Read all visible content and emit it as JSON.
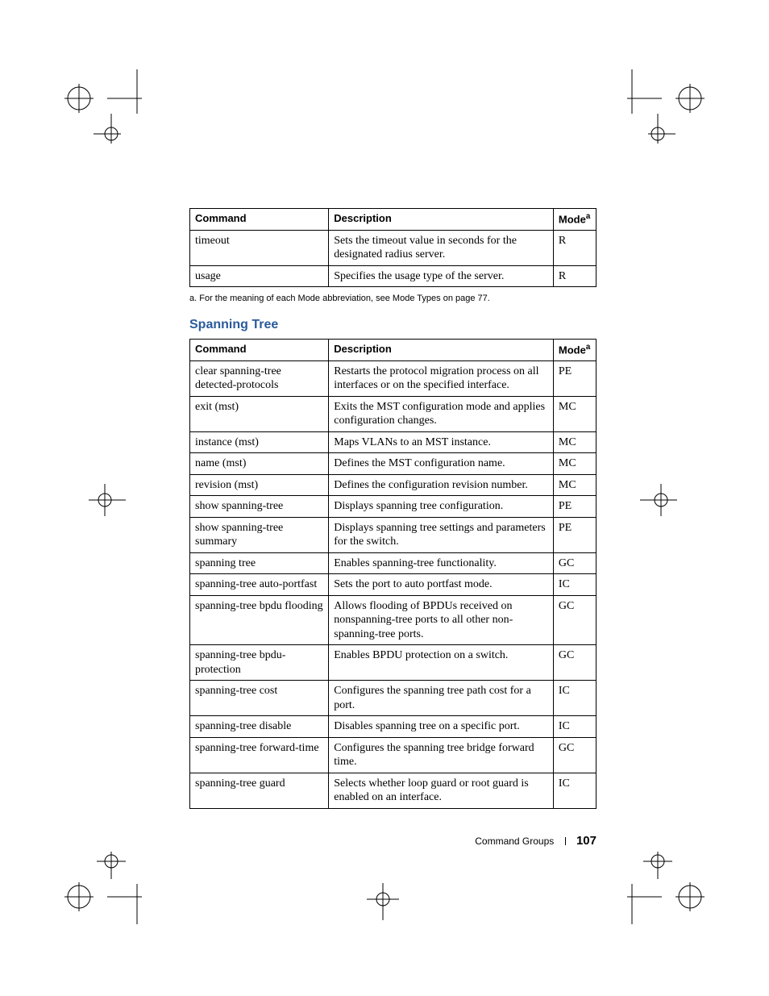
{
  "table1": {
    "headers": {
      "cmd": "Command",
      "desc": "Description",
      "mode": "Mode",
      "mode_sup": "a"
    },
    "rows": [
      {
        "cmd": "timeout",
        "desc": "Sets the timeout value in seconds for the designated radius server.",
        "mode": "R"
      },
      {
        "cmd": "usage",
        "desc": "Specifies the usage type of the server.",
        "mode": "R"
      }
    ]
  },
  "footnote": "a.    For the meaning of each Mode abbreviation, see Mode Types on page 77.",
  "section_title": "Spanning Tree",
  "table2": {
    "headers": {
      "cmd": "Command",
      "desc": "Description",
      "mode": "Mode",
      "mode_sup": "a"
    },
    "rows": [
      {
        "cmd": "clear spanning-tree detected-protocols",
        "desc": "Restarts the protocol migration process on all interfaces or on the specified interface.",
        "mode": "PE"
      },
      {
        "cmd": "exit (mst)",
        "desc": "Exits the MST configuration mode and applies configuration changes.",
        "mode": "MC"
      },
      {
        "cmd": "instance (mst)",
        "desc": "Maps VLANs to an MST instance.",
        "mode": "MC"
      },
      {
        "cmd": "name (mst)",
        "desc": "Defines the MST configuration name.",
        "mode": "MC"
      },
      {
        "cmd": "revision (mst)",
        "desc": "Defines the configuration revision number.",
        "mode": "MC"
      },
      {
        "cmd": "show spanning-tree",
        "desc": "Displays spanning tree configuration.",
        "mode": "PE"
      },
      {
        "cmd": "show spanning-tree summary",
        "desc": "Displays spanning tree settings and parameters for the switch.",
        "mode": "PE"
      },
      {
        "cmd": "spanning tree",
        "desc": "Enables spanning-tree functionality.",
        "mode": "GC"
      },
      {
        "cmd": "spanning-tree auto-portfast",
        "desc": "Sets the port to auto portfast mode.",
        "mode": "IC"
      },
      {
        "cmd": "spanning-tree bpdu flooding",
        "desc": "Allows flooding of BPDUs received on nonspanning-tree ports to all other non-spanning-tree ports.",
        "mode": "GC"
      },
      {
        "cmd": "spanning-tree bpdu-protection",
        "desc": "Enables BPDU protection on a switch.",
        "mode": "GC"
      },
      {
        "cmd": "spanning-tree cost",
        "desc": "Configures the spanning tree path cost for a port.",
        "mode": "IC"
      },
      {
        "cmd": "spanning-tree disable",
        "desc": "Disables spanning tree on a specific port.",
        "mode": "IC"
      },
      {
        "cmd": "spanning-tree forward-time",
        "desc": "Configures the spanning tree bridge forward time.",
        "mode": "GC"
      },
      {
        "cmd": "spanning-tree guard",
        "desc": "Selects whether loop guard or root guard is enabled on an interface.",
        "mode": "IC"
      }
    ]
  },
  "footer": {
    "section": "Command Groups",
    "page": "107"
  },
  "colors": {
    "heading": "#2a5a9c"
  }
}
